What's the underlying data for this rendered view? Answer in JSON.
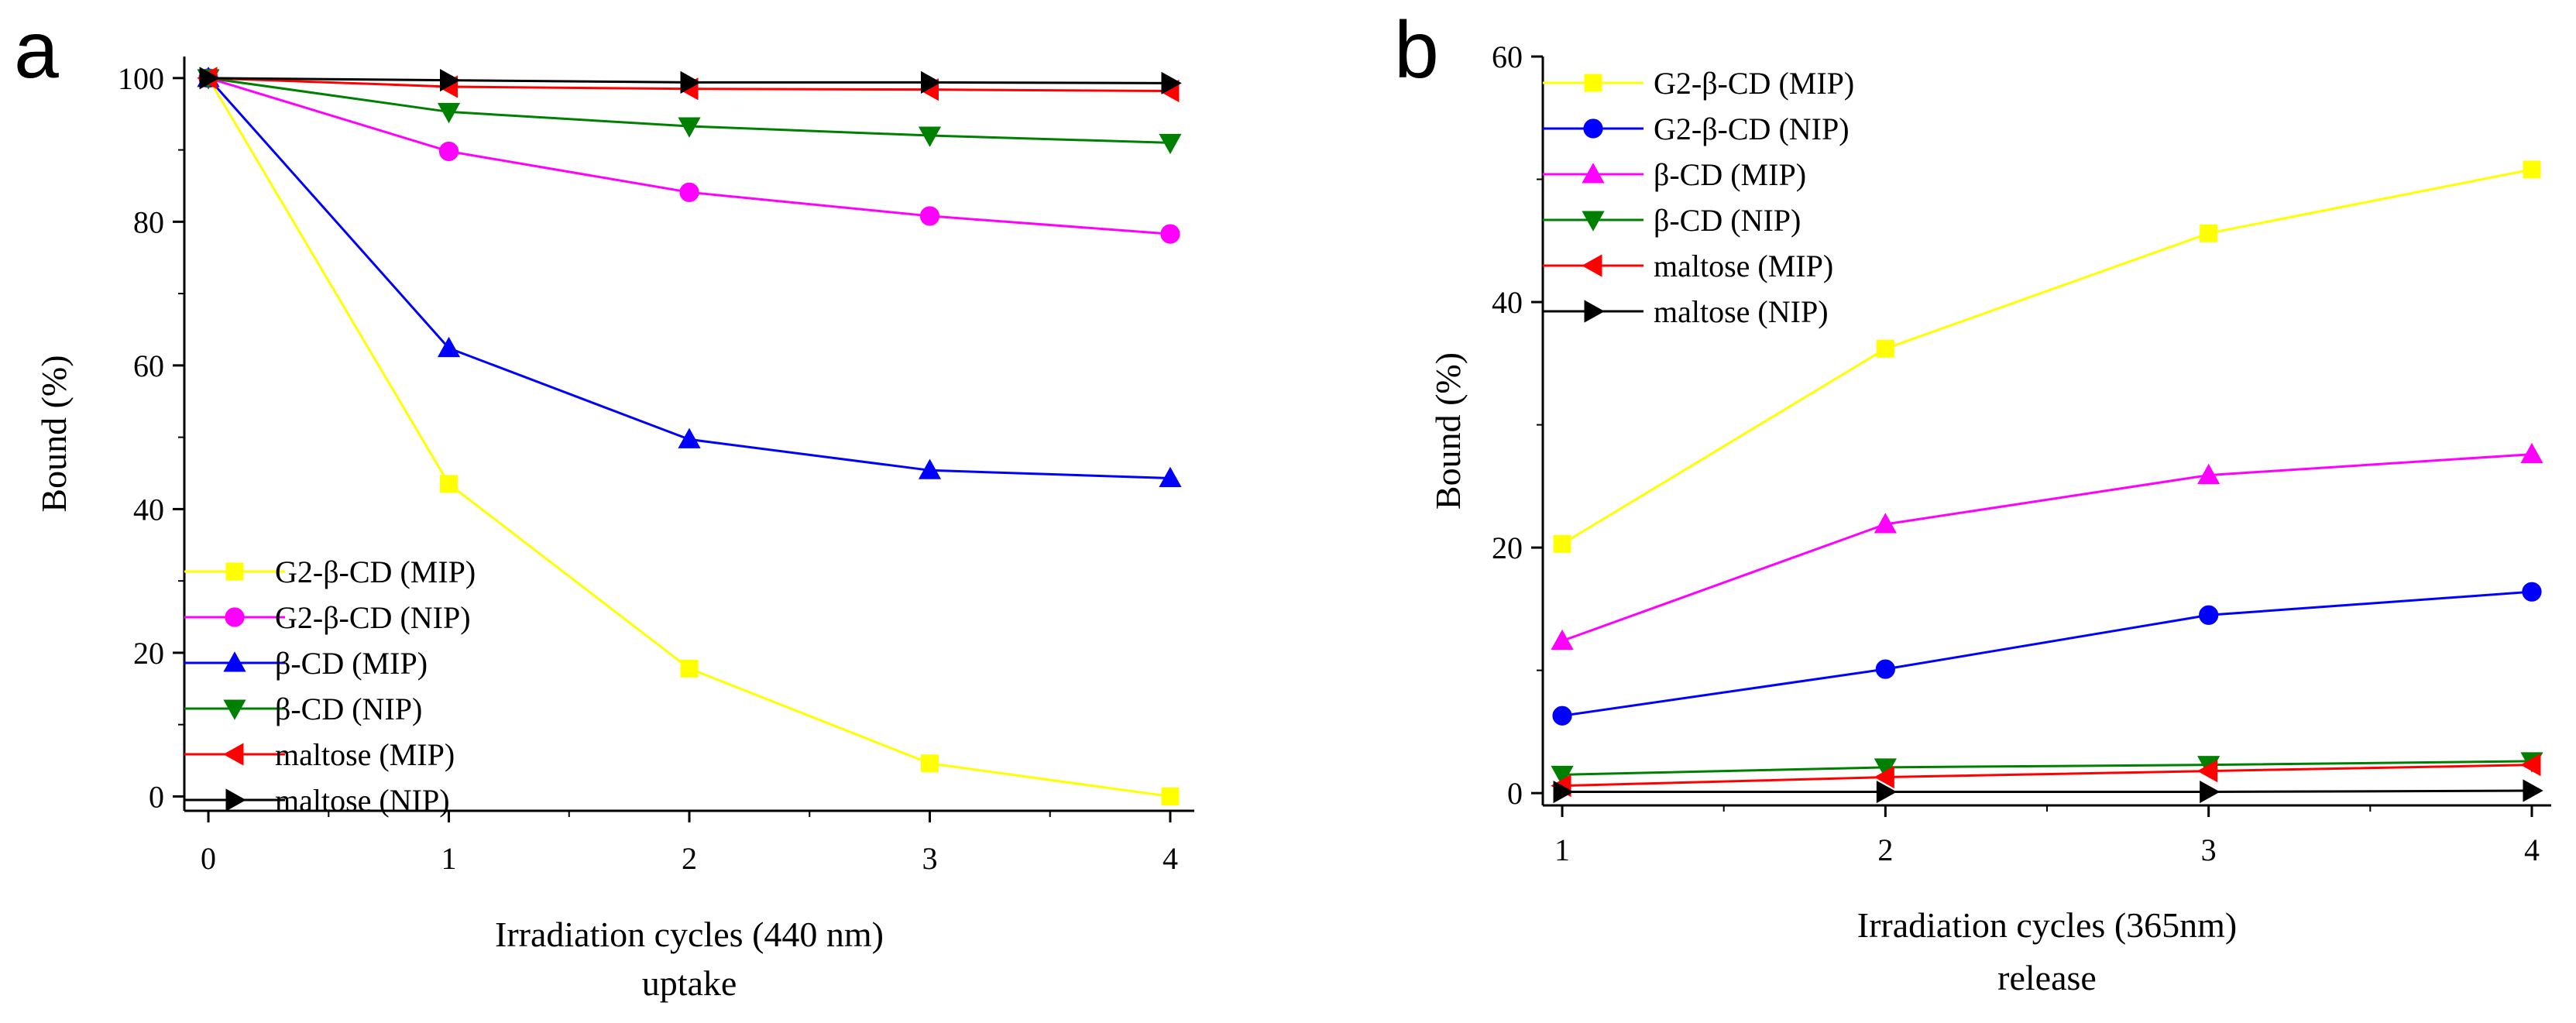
{
  "chart_data": [
    {
      "panel": "a",
      "type": "line",
      "title": "",
      "xlabel": "Irradiation cycles (440 nm)",
      "xlabel2": "uptake",
      "ylabel": "Bound (%)",
      "x": [
        0,
        1,
        2,
        3,
        4
      ],
      "xlim": [
        -0.1,
        4.1
      ],
      "ylim": [
        -2,
        103
      ],
      "xticks": [
        0,
        1,
        2,
        3,
        4
      ],
      "yticks": [
        0,
        20,
        40,
        60,
        80,
        100
      ],
      "grid": false,
      "legend_position": "bottom-left",
      "series": [
        {
          "name": "G2-β-CD (MIP)",
          "color": "#ffff00",
          "marker": "square",
          "values": [
            100,
            43.5,
            17.8,
            4.6,
            0
          ]
        },
        {
          "name": "G2-β-CD (NIP)",
          "color": "#ff00ff",
          "marker": "circle",
          "values": [
            100,
            89.8,
            84.1,
            80.8,
            78.3
          ]
        },
        {
          "name": "β-CD (MIP)",
          "color": "#0000ff",
          "marker": "triangle-up",
          "values": [
            100,
            62.4,
            49.7,
            45.4,
            44.3
          ]
        },
        {
          "name": "β-CD (NIP)",
          "color": "#008000",
          "marker": "triangle-down",
          "values": [
            100,
            95.3,
            93.3,
            92.0,
            91.0
          ]
        },
        {
          "name": "maltose (MIP)",
          "color": "#ff0000",
          "marker": "triangle-left",
          "values": [
            100,
            98.8,
            98.5,
            98.4,
            98.2
          ]
        },
        {
          "name": "maltose (NIP)",
          "color": "#000000",
          "marker": "triangle-right",
          "values": [
            100,
            99.7,
            99.4,
            99.4,
            99.3
          ]
        }
      ]
    },
    {
      "panel": "b",
      "type": "line",
      "title": "",
      "xlabel": "Irradiation cycles (365nm)",
      "xlabel2": "release",
      "ylabel": "Bound (%)",
      "x": [
        1,
        2,
        3,
        4
      ],
      "xlim": [
        0.94,
        4.06
      ],
      "ylim": [
        -1,
        60
      ],
      "xticks": [
        1,
        2,
        3,
        4
      ],
      "yticks": [
        0,
        20,
        40,
        60
      ],
      "grid": false,
      "legend_position": "top-left",
      "series": [
        {
          "name": "G2-β-CD (MIP)",
          "color": "#ffff00",
          "marker": "square",
          "values": [
            20.3,
            36.2,
            45.6,
            50.8
          ]
        },
        {
          "name": "G2-β-CD (NIP)",
          "color": "#0000ff",
          "marker": "circle",
          "values": [
            6.3,
            10.1,
            14.5,
            16.4
          ]
        },
        {
          "name": "β-CD (MIP)",
          "color": "#ff00ff",
          "marker": "triangle-up",
          "values": [
            12.4,
            21.9,
            25.9,
            27.6
          ]
        },
        {
          "name": "β-CD (NIP)",
          "color": "#008000",
          "marker": "triangle-down",
          "values": [
            1.5,
            2.1,
            2.3,
            2.6
          ]
        },
        {
          "name": "maltose (MIP)",
          "color": "#ff0000",
          "marker": "triangle-left",
          "values": [
            0.6,
            1.3,
            1.8,
            2.3
          ]
        },
        {
          "name": "maltose (NIP)",
          "color": "#000000",
          "marker": "triangle-right",
          "values": [
            0.1,
            0.1,
            0.1,
            0.2
          ]
        }
      ]
    }
  ]
}
